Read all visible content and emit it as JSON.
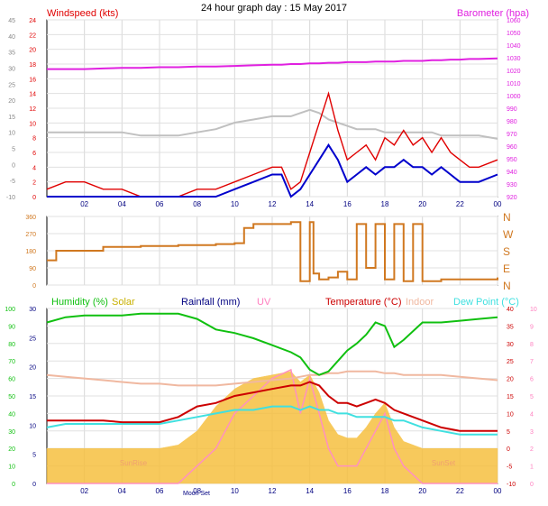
{
  "page_title": "24 hour graph day : 15 May 2017",
  "x_ticks": [
    "02",
    "04",
    "06",
    "08",
    "10",
    "12",
    "14",
    "16",
    "18",
    "20",
    "22",
    "00"
  ],
  "colors": {
    "wind": "#e00000",
    "wind_avg": "#0000cc",
    "baro": "#e020e0",
    "temp_feels": "#c0c0c0",
    "direction": "#d07820",
    "humidity": "#10c010",
    "solar": "#f6c040",
    "rainfall": "#000080",
    "uv": "#ff90c0",
    "temperature": "#cc0000",
    "indoor": "#f0b8a0",
    "dewpoint": "#40e0e0",
    "lavender": "#b0a0f0"
  },
  "chart_data": [
    {
      "type": "line",
      "panel": "wind",
      "left_axis_title": "Windspeed (kts)",
      "right_axis_title": "Barometer (hpa)",
      "y_left_ticks": [
        "24",
        "22",
        "20",
        "18",
        "16",
        "14",
        "12",
        "10",
        "8",
        "6",
        "4",
        "2",
        "0"
      ],
      "y_far_left_ticks": [
        "45",
        "40",
        "35",
        "30",
        "25",
        "20",
        "15",
        "10",
        "5",
        "0",
        "-5",
        "-10"
      ],
      "y_right_ticks": [
        "1060",
        "1050",
        "1040",
        "1030",
        "1020",
        "1010",
        "1000",
        "990",
        "980",
        "970",
        "960",
        "950",
        "940",
        "930",
        "920"
      ],
      "x_hours": [
        0,
        1,
        2,
        3,
        4,
        5,
        6,
        7,
        8,
        9,
        10,
        11,
        12,
        12.5,
        13,
        13.5,
        14,
        14.5,
        15,
        15.5,
        16,
        16.5,
        17,
        17.5,
        18,
        18.5,
        19,
        19.5,
        20,
        20.5,
        21,
        21.5,
        22,
        22.5,
        23,
        24
      ],
      "series": [
        {
          "name": "Windspeed (kts)",
          "values": [
            1,
            2,
            2,
            1,
            1,
            0,
            0,
            0,
            1,
            1,
            2,
            3,
            4,
            4,
            1,
            2,
            6,
            10,
            14,
            9,
            5,
            6,
            7,
            5,
            8,
            7,
            9,
            7,
            8,
            6,
            8,
            6,
            5,
            4,
            4,
            5
          ]
        },
        {
          "name": "avg",
          "values": [
            0,
            0,
            0,
            0,
            0,
            0,
            0,
            0,
            0,
            0,
            1,
            2,
            3,
            3,
            0,
            1,
            3,
            5,
            7,
            5,
            2,
            3,
            4,
            3,
            4,
            4,
            5,
            4,
            4,
            3,
            4,
            3,
            2,
            2,
            2,
            3
          ]
        },
        {
          "name": "Barometer (hpa)",
          "values": [
            1021,
            1021,
            1021,
            1021.5,
            1022,
            1022,
            1022.5,
            1022.5,
            1023,
            1023,
            1023.5,
            1024,
            1024.5,
            1024.5,
            1025,
            1025,
            1025.5,
            1025.5,
            1026,
            1026,
            1026.5,
            1026.5,
            1026.5,
            1027,
            1027,
            1027,
            1027.5,
            1027.5,
            1027.5,
            1028,
            1028,
            1028.5,
            1028.5,
            1029,
            1029,
            1029.5
          ]
        },
        {
          "name": "feels",
          "values": [
            10,
            10,
            10,
            10,
            10,
            9,
            9,
            9,
            10,
            11,
            13,
            14,
            15,
            15,
            15,
            16,
            17,
            16,
            14,
            13,
            12,
            11,
            11,
            11,
            10,
            10,
            10,
            10,
            10,
            10,
            9,
            9,
            9,
            9,
            9,
            8
          ]
        }
      ]
    },
    {
      "type": "line",
      "panel": "direction",
      "y_left_ticks": [
        "360",
        "270",
        "180",
        "90",
        "0"
      ],
      "y_right_ticks": [
        "N",
        "W",
        "S",
        "E",
        "N"
      ],
      "x_hours": [
        0,
        0.3,
        0.5,
        3,
        5,
        7,
        9,
        10,
        10.5,
        11,
        12,
        13,
        13.5,
        14,
        14.2,
        14.5,
        15,
        15.5,
        16,
        16.5,
        17,
        17.5,
        18,
        18.5,
        19,
        19.5,
        20,
        21,
        22,
        23,
        24
      ],
      "series": [
        {
          "name": "direction",
          "values": [
            130,
            130,
            180,
            200,
            205,
            210,
            215,
            220,
            300,
            320,
            320,
            330,
            20,
            330,
            60,
            30,
            40,
            70,
            30,
            320,
            90,
            320,
            30,
            320,
            20,
            320,
            20,
            30,
            30,
            30,
            40
          ]
        }
      ]
    },
    {
      "type": "line",
      "panel": "temperature",
      "legend": [
        "Humidity (%)",
        "Solar",
        "Rainfall (mm)",
        "UV",
        "Temperature (°C)",
        "Indoor",
        "Dew Point (°C)"
      ],
      "y_far_left_ticks": [
        "100",
        "90",
        "80",
        "70",
        "60",
        "50",
        "40",
        "30",
        "20",
        "10",
        "0"
      ],
      "y_left_ticks": [
        "30",
        "25",
        "20",
        "15",
        "10",
        "5",
        "0"
      ],
      "y_right_ticks": [
        "40",
        "35",
        "30",
        "25",
        "20",
        "15",
        "10",
        "5",
        "0",
        "-5",
        "-10"
      ],
      "y_far_right_ticks": [
        "10",
        "9",
        "8",
        "7",
        "6",
        "5",
        "4",
        "3",
        "2",
        "1",
        "0"
      ],
      "annotations": [
        "SunRise",
        "Moon Set",
        "SunSet"
      ],
      "x_hours": [
        0,
        1,
        2,
        3,
        4,
        5,
        6,
        7,
        8,
        9,
        10,
        11,
        12,
        13,
        13.5,
        14,
        14.5,
        15,
        15.5,
        16,
        16.5,
        17,
        17.5,
        18,
        18.5,
        19,
        20,
        21,
        22,
        23,
        24
      ],
      "series": [
        {
          "name": "Humidity (%)",
          "values": [
            92,
            95,
            96,
            96,
            96,
            97,
            97,
            97,
            94,
            88,
            86,
            83,
            79,
            75,
            72,
            65,
            62,
            64,
            70,
            76,
            80,
            85,
            92,
            90,
            78,
            82,
            92,
            92,
            93,
            94,
            95
          ]
        },
        {
          "name": "Temperature (°C)",
          "values": [
            8,
            8,
            8,
            8,
            7.5,
            7.5,
            7.5,
            9,
            12,
            13,
            15,
            16,
            17,
            18,
            18,
            19,
            18,
            15,
            13,
            13,
            12,
            13,
            14,
            13,
            11,
            10,
            8,
            6,
            5,
            5,
            5
          ]
        },
        {
          "name": "Dew Point (°C)",
          "values": [
            6,
            7,
            7,
            7,
            7,
            7,
            7,
            8,
            9,
            10,
            11,
            11,
            12,
            12,
            11,
            12,
            11,
            11,
            10,
            10,
            9,
            9,
            9,
            9,
            8,
            8,
            6,
            5,
            4,
            4,
            4
          ]
        },
        {
          "name": "Indoor",
          "values": [
            21,
            20.5,
            20,
            19.5,
            19,
            18.5,
            18.5,
            18,
            18,
            18,
            18.5,
            19,
            19.5,
            20,
            20.5,
            21,
            21,
            21.5,
            21.5,
            22,
            22,
            22,
            22,
            21.5,
            21.5,
            21,
            21,
            21,
            20.5,
            20,
            19.5
          ]
        },
        {
          "name": "Solar",
          "values": [
            0,
            0,
            0,
            0,
            0,
            0,
            0,
            1,
            5,
            12,
            17,
            20,
            21,
            22,
            19,
            21,
            16,
            8,
            4,
            3,
            3,
            6,
            10,
            13,
            6,
            2,
            0,
            0,
            0,
            0,
            0
          ]
        },
        {
          "name": "UV",
          "values": [
            0,
            0,
            0,
            0,
            0,
            0,
            0,
            0,
            1,
            2,
            4,
            5,
            6,
            6.5,
            4,
            6,
            4,
            2,
            1,
            1,
            1,
            2,
            3,
            4,
            2,
            1,
            0,
            0,
            0,
            0,
            0
          ]
        }
      ]
    }
  ]
}
